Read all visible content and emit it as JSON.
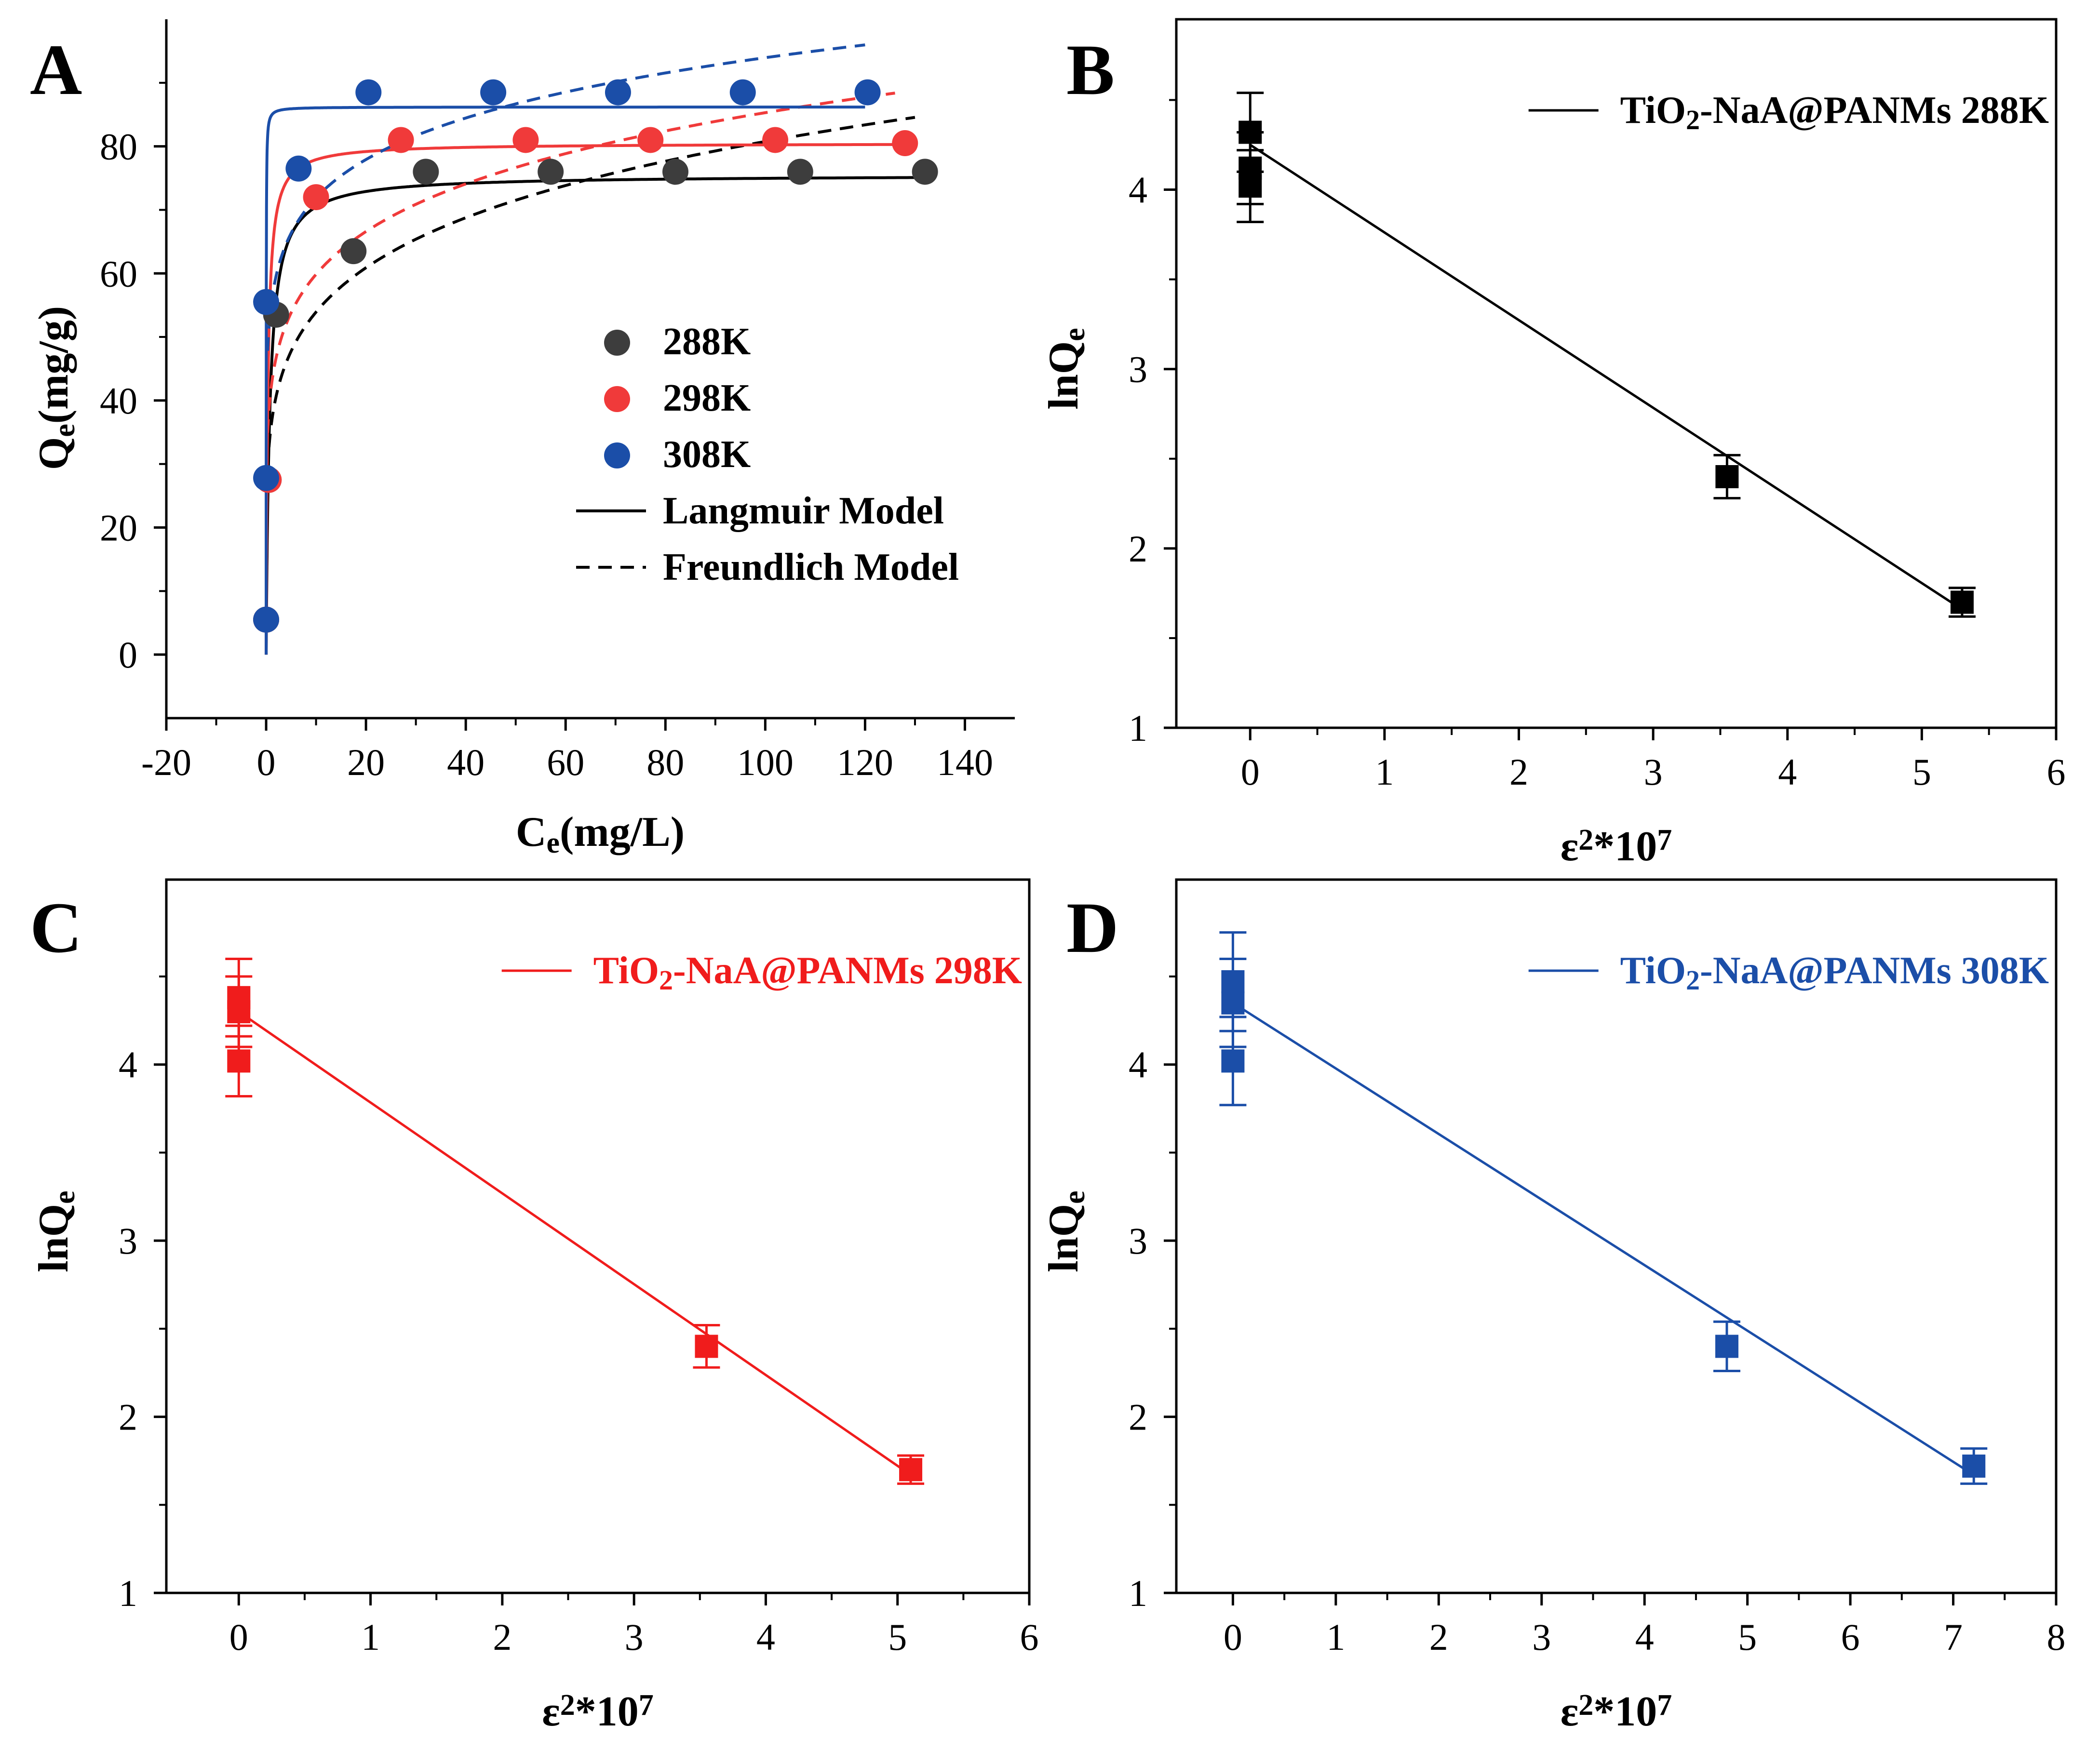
{
  "chart_data": [
    {
      "panel": "A",
      "type": "scatter",
      "xlabel": {
        "main": "C",
        "sub": "e",
        "rest": "(mg/L)"
      },
      "ylabel": {
        "main": "Q",
        "sub": "e",
        "rest": "(mg/g)"
      },
      "xlim": [
        -20,
        150
      ],
      "ylim": [
        -10,
        100
      ],
      "xticks": [
        -20,
        0,
        20,
        40,
        60,
        80,
        100,
        120,
        140
      ],
      "yticks": [
        0,
        20,
        40,
        60,
        80
      ],
      "legend": {
        "placement": "center-right",
        "entries": [
          {
            "label": "288K",
            "kind": "marker",
            "color": "#3d3d3d"
          },
          {
            "label": "298K",
            "kind": "marker",
            "color": "#f03a3a"
          },
          {
            "label": "308K",
            "kind": "marker",
            "color": "#1b4ea8"
          },
          {
            "label": "Langmuir Model",
            "kind": "solid",
            "color": "#000000"
          },
          {
            "label": "Freundlich Model",
            "kind": "dashed",
            "color": "#000000"
          }
        ]
      },
      "series": [
        {
          "name": "288K",
          "color": "#3d3d3d",
          "points": [
            [
              0,
              5.5
            ],
            [
              0.5,
              27.5
            ],
            [
              2,
              53.5
            ],
            [
              17.5,
              63.5
            ],
            [
              32,
              76
            ],
            [
              57,
              76
            ],
            [
              82,
              76
            ],
            [
              107,
              76
            ],
            [
              132,
              76
            ]
          ],
          "langmuir": {
            "qm": 75.5,
            "k": 1.4,
            "xmax": 131
          },
          "freundlich": {
            "kf": 36,
            "n": 5.7,
            "xmax": 130
          }
        },
        {
          "name": "298K",
          "color": "#f03a3a",
          "points": [
            [
              0,
              5.5
            ],
            [
              0.5,
              27.5
            ],
            [
              10,
              72
            ],
            [
              27,
              81
            ],
            [
              52,
              81
            ],
            [
              77,
              81
            ],
            [
              102,
              81
            ],
            [
              128,
              80.5
            ]
          ],
          "langmuir": {
            "qm": 80.5,
            "k": 3,
            "xmax": 127
          },
          "freundlich": {
            "kf": 42,
            "n": 6.5,
            "xmax": 126
          }
        },
        {
          "name": "308K",
          "color": "#1b4ea8",
          "points": [
            [
              0,
              5.5
            ],
            [
              0,
              27.8
            ],
            [
              0,
              55.5
            ],
            [
              6.5,
              76.5
            ],
            [
              20.5,
              88.5
            ],
            [
              45.5,
              88.5
            ],
            [
              70.5,
              88.5
            ],
            [
              95.5,
              88.5
            ],
            [
              120.5,
              88.5
            ]
          ],
          "langmuir": {
            "qm": 86.2,
            "k": 60,
            "xmax": 120
          },
          "freundlich": {
            "kf": 55,
            "n": 8.6,
            "xmax": 120
          }
        }
      ]
    },
    {
      "panel": "B",
      "type": "scatter",
      "color": "#000000",
      "xlabel": {
        "main": "ε",
        "sup1": "2",
        "mid": "*10",
        "sup2": "7"
      },
      "ylabel": {
        "main": "lnQ",
        "sub": "e"
      },
      "xlim": [
        -0.55,
        6
      ],
      "ylim": [
        1,
        4.95
      ],
      "xticks": [
        0,
        1,
        2,
        3,
        4,
        5,
        6
      ],
      "yticks": [
        1,
        2,
        3,
        4
      ],
      "legend_label": {
        "pre": "TiO",
        "sub": "2",
        "post": "-NaA@PANMs 288K"
      },
      "points": [
        [
          0,
          4.32
        ],
        [
          0,
          4.12
        ],
        [
          0,
          4.02
        ],
        [
          3.55,
          2.4
        ],
        [
          5.3,
          1.7
        ]
      ],
      "errors": [
        0.22,
        0.2,
        0.2,
        0.12,
        0.08
      ],
      "fit": {
        "x": [
          0,
          5.3
        ],
        "y": [
          4.25,
          1.66
        ]
      }
    },
    {
      "panel": "C",
      "type": "scatter",
      "color": "#f01c1c",
      "xlabel": {
        "main": "ε",
        "sup1": "2",
        "mid": "*10",
        "sup2": "7"
      },
      "ylabel": {
        "main": "lnQ",
        "sub": "e"
      },
      "xlim": [
        -0.55,
        6
      ],
      "ylim": [
        1,
        5.05
      ],
      "xticks": [
        0,
        1,
        2,
        3,
        4,
        5,
        6
      ],
      "yticks": [
        1,
        2,
        3,
        4
      ],
      "legend_label": {
        "pre": "TiO",
        "sub": "2",
        "post": "-NaA@PANMs 298K"
      },
      "points": [
        [
          0,
          4.38
        ],
        [
          0,
          4.3
        ],
        [
          0,
          4.02
        ],
        [
          3.55,
          2.4
        ],
        [
          5.1,
          1.7
        ]
      ],
      "errors": [
        0.22,
        0.2,
        0.2,
        0.12,
        0.08
      ],
      "fit": {
        "x": [
          0,
          5.1
        ],
        "y": [
          4.3,
          1.67
        ]
      }
    },
    {
      "panel": "D",
      "type": "scatter",
      "color": "#1b4ea8",
      "xlabel": {
        "main": "ε",
        "sup1": "2",
        "mid": "*10",
        "sup2": "7"
      },
      "ylabel": {
        "main": "lnQ",
        "sub": "e"
      },
      "xlim": [
        -0.55,
        8
      ],
      "ylim": [
        1,
        5.05
      ],
      "xticks": [
        0,
        1,
        2,
        3,
        4,
        5,
        6,
        7,
        8
      ],
      "yticks": [
        1,
        2,
        3,
        4
      ],
      "legend_label": {
        "pre": "TiO",
        "sub": "2",
        "post": "-NaA@PANMs 308K"
      },
      "points": [
        [
          0,
          4.47
        ],
        [
          0,
          4.35
        ],
        [
          0,
          4.02
        ],
        [
          4.8,
          2.4
        ],
        [
          7.2,
          1.72
        ]
      ],
      "errors": [
        0.28,
        0.25,
        0.25,
        0.14,
        0.1
      ],
      "fit": {
        "x": [
          0,
          7.2
        ],
        "y": [
          4.35,
          1.67
        ]
      }
    }
  ]
}
